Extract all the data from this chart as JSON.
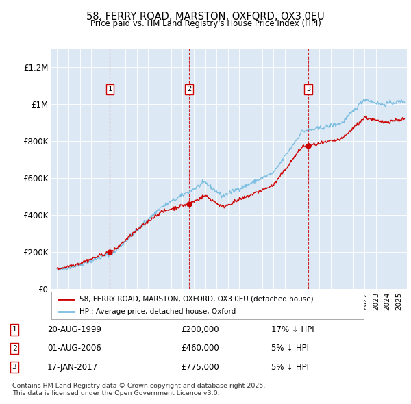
{
  "title_line1": "58, FERRY ROAD, MARSTON, OXFORD, OX3 0EU",
  "title_line2": "Price paid vs. HM Land Registry's House Price Index (HPI)",
  "x_start_year": 1995,
  "x_end_year": 2025,
  "y_min": 0,
  "y_max": 1300000,
  "y_ticks": [
    0,
    200000,
    400000,
    600000,
    800000,
    1000000,
    1200000
  ],
  "y_tick_labels": [
    "£0",
    "£200K",
    "£400K",
    "£600K",
    "£800K",
    "£1M",
    "£1.2M"
  ],
  "background_color": "#dce9f5",
  "line_color_hpi": "#7bbde0",
  "line_color_price": "#cc0000",
  "legend_label_price": "58, FERRY ROAD, MARSTON, OXFORD, OX3 0EU (detached house)",
  "legend_label_hpi": "HPI: Average price, detached house, Oxford",
  "sale_years": [
    1999.635,
    2006.583,
    2017.046
  ],
  "sale_prices": [
    200000,
    460000,
    775000
  ],
  "sale_labels": [
    "1",
    "2",
    "3"
  ],
  "sale_annotations": [
    {
      "label": "1",
      "date": "20-AUG-1999",
      "price": "£200,000",
      "pct": "17% ↓ HPI"
    },
    {
      "label": "2",
      "date": "01-AUG-2006",
      "price": "£460,000",
      "pct": "5% ↓ HPI"
    },
    {
      "label": "3",
      "date": "17-JAN-2017",
      "price": "£775,000",
      "pct": "5% ↓ HPI"
    }
  ],
  "footer_text": "Contains HM Land Registry data © Crown copyright and database right 2025.\nThis data is licensed under the Open Government Licence v3.0.",
  "num_points": 500,
  "noise_seed": 42,
  "hpi_noise_scale": 6000,
  "price_noise_scale": 5000
}
